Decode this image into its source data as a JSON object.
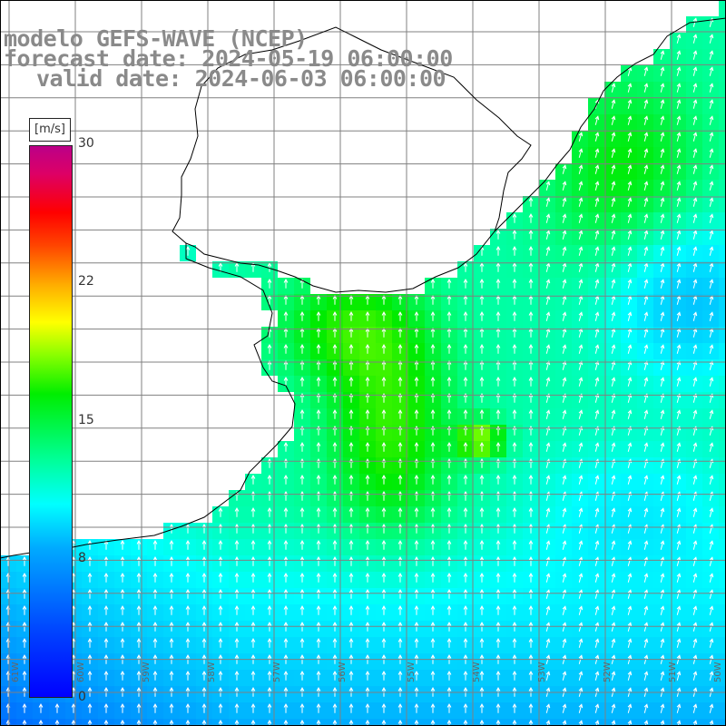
{
  "title": {
    "line1": "modelo GEFS-WAVE (NCEP)",
    "line2": "forecast date: 2024-05-19 06:00:00",
    "line3": "valid date: 2024-06-03 06:00:00"
  },
  "colorbar": {
    "units": "[m/s]",
    "ticks": [
      {
        "label": "30",
        "value": 30
      },
      {
        "label": "22",
        "value": 22
      },
      {
        "label": "15",
        "value": 15
      },
      {
        "label": "8",
        "value": 8
      },
      {
        "label": "0",
        "value": 0
      }
    ]
  },
  "axes": {
    "lon_labels": [
      "61W",
      "60W",
      "59W",
      "58W",
      "57W",
      "56W",
      "55W",
      "54W",
      "53W",
      "52W",
      "51W",
      "50W"
    ]
  },
  "colors": {
    "land": "#ffffff",
    "grid": "#808080",
    "coast": "#000000",
    "arrow": "#ffffff"
  }
}
